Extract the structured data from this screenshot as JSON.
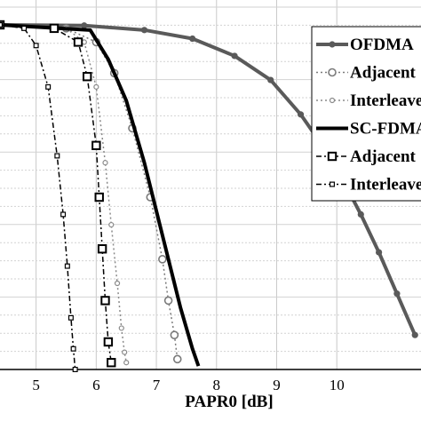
{
  "chart_data": {
    "type": "line",
    "xlabel": "PAPR0 [dB]",
    "xlim": [
      4.4,
      11.4
    ],
    "x_ticks": [
      5,
      6,
      7,
      8,
      9,
      10
    ],
    "ylim": [
      0.0,
      1.0
    ],
    "grid": true,
    "legend_position": "top-right",
    "series": [
      {
        "name": "OFDMA",
        "style": "solid-thick",
        "marker": "filled-circle",
        "color": "#5a5a5a",
        "x": [
          4.4,
          5.8,
          6.8,
          7.6,
          8.3,
          8.9,
          9.4,
          9.8,
          10.1,
          10.4,
          10.7,
          11.0,
          11.3
        ],
        "y": [
          1.0,
          0.998,
          0.985,
          0.96,
          0.91,
          0.84,
          0.74,
          0.64,
          0.55,
          0.45,
          0.34,
          0.22,
          0.1
        ]
      },
      {
        "name": "Adjacent",
        "style": "dotted",
        "marker": "open-circle",
        "color": "#7a7a7a",
        "x": [
          4.4,
          5.5,
          6.0,
          6.3,
          6.6,
          6.9,
          7.1,
          7.2,
          7.3,
          7.35
        ],
        "y": [
          1.0,
          0.99,
          0.95,
          0.86,
          0.7,
          0.5,
          0.32,
          0.2,
          0.1,
          0.03
        ]
      },
      {
        "name": "Interleaved",
        "style": "dotted",
        "marker": "small-circle",
        "color": "#8a8a8a",
        "x": [
          4.4,
          5.5,
          5.8,
          6.0,
          6.15,
          6.25,
          6.35,
          6.42,
          6.47,
          6.5
        ],
        "y": [
          1.0,
          0.99,
          0.95,
          0.82,
          0.6,
          0.42,
          0.25,
          0.12,
          0.05,
          0.02
        ]
      },
      {
        "name": "SC-FDMA",
        "style": "solid-thick",
        "marker": "none",
        "color": "#000000",
        "x": [
          4.4,
          5.9,
          6.2,
          6.5,
          6.8,
          7.0,
          7.2,
          7.4,
          7.6,
          7.7
        ],
        "y": [
          1.0,
          0.985,
          0.9,
          0.78,
          0.6,
          0.46,
          0.32,
          0.18,
          0.06,
          0.01
        ]
      },
      {
        "name": "Adjacent",
        "style": "dash-dot",
        "marker": "open-square",
        "color": "#000000",
        "x": [
          4.4,
          5.3,
          5.7,
          5.85,
          6.0,
          6.05,
          6.1,
          6.15,
          6.2,
          6.25
        ],
        "y": [
          1.0,
          0.99,
          0.95,
          0.85,
          0.65,
          0.5,
          0.35,
          0.2,
          0.08,
          0.02
        ]
      },
      {
        "name": "Interleaved",
        "style": "dash-dot",
        "marker": "small-square",
        "color": "#000000",
        "x": [
          4.4,
          4.8,
          5.0,
          5.2,
          5.35,
          5.45,
          5.52,
          5.58,
          5.62,
          5.65
        ],
        "y": [
          1.0,
          0.99,
          0.94,
          0.82,
          0.62,
          0.45,
          0.3,
          0.15,
          0.06,
          0.0
        ]
      }
    ]
  }
}
